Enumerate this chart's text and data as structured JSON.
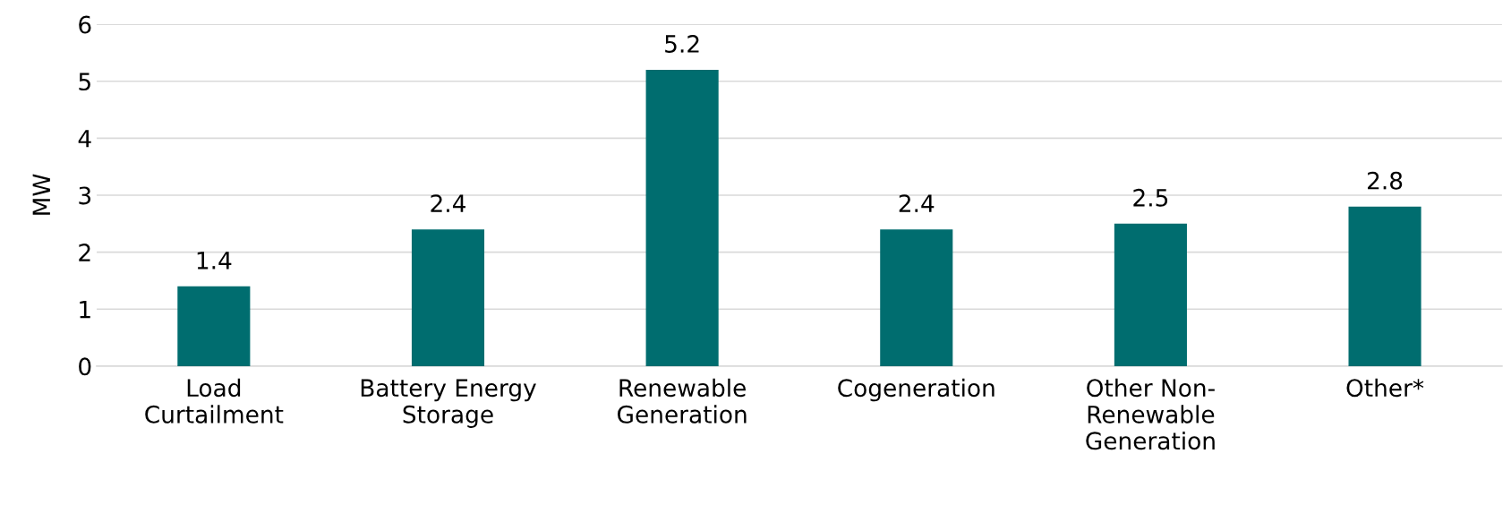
{
  "chart_data": {
    "type": "bar",
    "ylabel": "MW",
    "categories": [
      "Load\nCurtailment",
      "Battery Energy\nStorage",
      "Renewable\nGeneration",
      "Cogeneration",
      "Other Non-\nRenewable\nGeneration",
      "Other*"
    ],
    "values": [
      1.4,
      2.4,
      5.2,
      2.4,
      2.5,
      2.8
    ],
    "color": "#006d6f",
    "ylim": [
      0,
      6
    ],
    "yticks": [
      0,
      1,
      2,
      3,
      4,
      5,
      6
    ],
    "grid": "y",
    "data_labels": true
  }
}
